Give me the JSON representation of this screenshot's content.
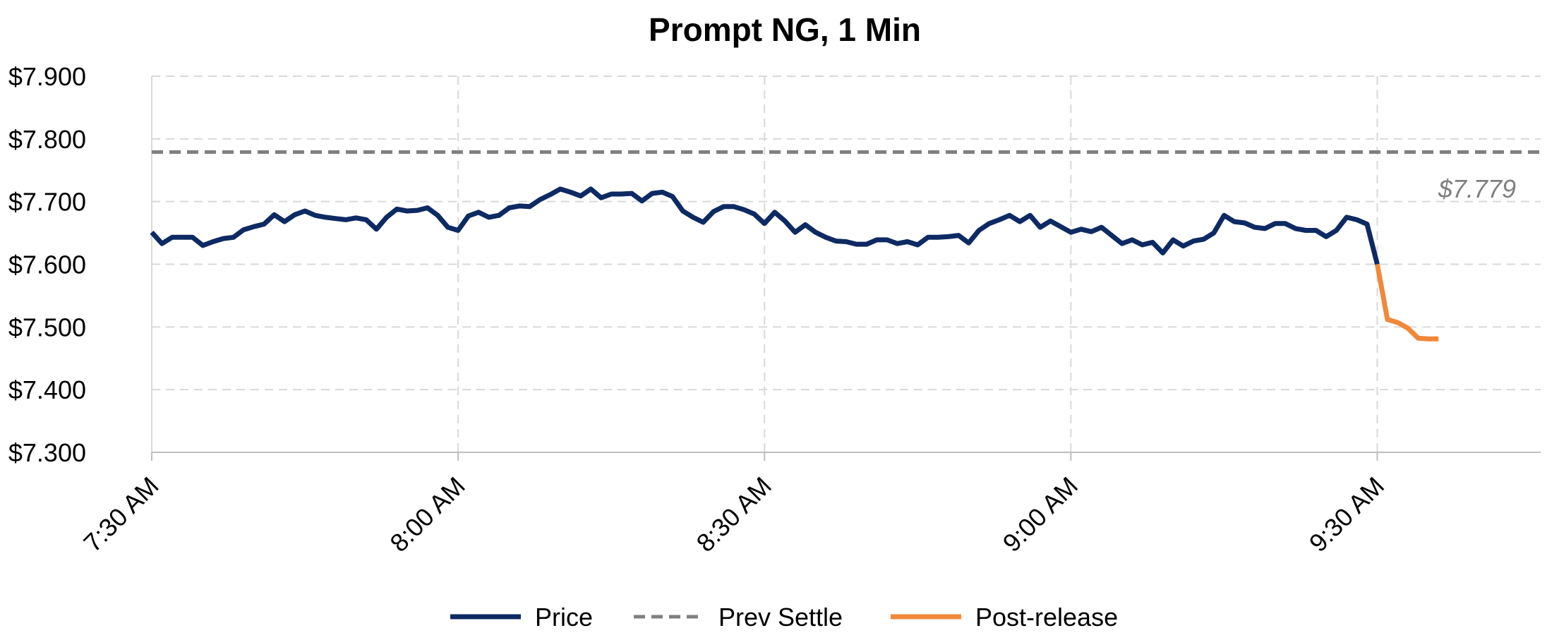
{
  "chart_data": {
    "type": "line",
    "title": "Prompt NG, 1 Min",
    "xlabel": "",
    "ylabel": "",
    "x_ticks": [
      "7:30 AM",
      "8:00 AM",
      "8:30 AM",
      "9:00 AM",
      "9:30 AM"
    ],
    "x_tick_minutes": [
      0,
      30,
      60,
      90,
      120
    ],
    "xlim_minutes": [
      0,
      136
    ],
    "ylim": [
      7.3,
      7.9
    ],
    "y_ticks": [
      "$7.300",
      "$7.400",
      "$7.500",
      "$7.600",
      "$7.700",
      "$7.800",
      "$7.900"
    ],
    "y_tick_values": [
      7.3,
      7.4,
      7.5,
      7.6,
      7.7,
      7.8,
      7.9
    ],
    "grid": true,
    "legend_position": "bottom",
    "series": [
      {
        "name": "Price",
        "color": "#0e2a63",
        "style": "solid",
        "x_minutes": [
          0,
          1,
          2,
          3,
          4,
          5,
          6,
          7,
          8,
          9,
          10,
          11,
          12,
          13,
          14,
          15,
          16,
          17,
          18,
          19,
          20,
          21,
          22,
          23,
          24,
          25,
          26,
          27,
          28,
          29,
          30,
          31,
          32,
          33,
          34,
          35,
          36,
          37,
          38,
          39,
          40,
          41,
          42,
          43,
          44,
          45,
          46,
          47,
          48,
          49,
          50,
          51,
          52,
          53,
          54,
          55,
          56,
          57,
          58,
          59,
          60,
          61,
          62,
          63,
          64,
          65,
          66,
          67,
          68,
          69,
          70,
          71,
          72,
          73,
          74,
          75,
          76,
          77,
          78,
          79,
          80,
          81,
          82,
          83,
          84,
          85,
          86,
          87,
          88,
          89,
          90,
          91,
          92,
          93,
          94,
          95,
          96,
          97,
          98,
          99,
          100,
          101,
          102,
          103,
          104,
          105,
          106,
          107,
          108,
          109,
          110,
          111,
          112,
          113,
          114,
          115,
          116,
          117,
          118,
          119,
          120
        ],
        "values": [
          7.651,
          7.633,
          7.643,
          7.643,
          7.643,
          7.63,
          7.636,
          7.641,
          7.643,
          7.655,
          7.66,
          7.664,
          7.679,
          7.668,
          7.679,
          7.685,
          7.678,
          7.675,
          7.673,
          7.671,
          7.674,
          7.671,
          7.656,
          7.675,
          7.688,
          7.685,
          7.686,
          7.69,
          7.678,
          7.659,
          7.654,
          7.677,
          7.683,
          7.675,
          7.678,
          7.69,
          7.693,
          7.692,
          7.703,
          7.711,
          7.72,
          7.715,
          7.709,
          7.72,
          7.706,
          7.712,
          7.712,
          7.713,
          7.701,
          7.713,
          7.715,
          7.708,
          7.685,
          7.675,
          7.667,
          7.684,
          7.692,
          7.692,
          7.687,
          7.68,
          7.665,
          7.683,
          7.669,
          7.651,
          7.663,
          7.651,
          7.643,
          7.637,
          7.636,
          7.632,
          7.632,
          7.639,
          7.639,
          7.633,
          7.636,
          7.631,
          7.643,
          7.643,
          7.644,
          7.646,
          7.634,
          7.654,
          7.665,
          7.671,
          7.678,
          7.668,
          7.678,
          7.659,
          7.669,
          7.66,
          7.651,
          7.656,
          7.652,
          7.659,
          7.646,
          7.633,
          7.639,
          7.631,
          7.635,
          7.618,
          7.639,
          7.629,
          7.637,
          7.64,
          7.65,
          7.678,
          7.668,
          7.666,
          7.659,
          7.657,
          7.665,
          7.665,
          7.657,
          7.654,
          7.654,
          7.644,
          7.654,
          7.675,
          7.671,
          7.664,
          7.6
        ]
      },
      {
        "name": "Prev Settle",
        "color": "#808080",
        "style": "dashed",
        "value": 7.779
      },
      {
        "name": "Post-release",
        "color": "#f0883a",
        "style": "solid",
        "x_minutes": [
          120,
          121,
          122,
          123,
          124,
          125,
          126
        ],
        "values": [
          7.6,
          7.512,
          7.507,
          7.498,
          7.482,
          7.481,
          7.481
        ]
      }
    ],
    "annotations": [
      {
        "text": "$7.779",
        "refers_to": "Prev Settle"
      }
    ]
  }
}
